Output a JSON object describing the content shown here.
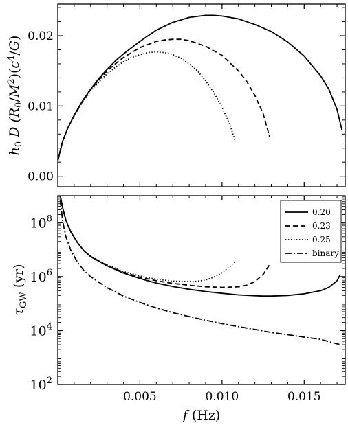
{
  "chart_data": [
    {
      "type": "line",
      "panel": "top",
      "ylabel": "h₀ D (R₀/M²)(c⁴/G)",
      "ylim": [
        -0.0015,
        0.0245
      ],
      "yticks": [
        0.0,
        0.01,
        0.02
      ],
      "ytick_labels": [
        "0.00",
        "0.01",
        "0.02"
      ],
      "xlim": [
        0,
        0.0175
      ],
      "grid": false,
      "series": [
        {
          "name": "0.20",
          "style": "solid",
          "x": [
            1e-05,
            0.0003,
            0.0006,
            0.001,
            0.0015,
            0.002,
            0.0025,
            0.003,
            0.0035,
            0.004,
            0.005,
            0.006,
            0.007,
            0.008,
            0.009,
            0.0095,
            0.01,
            0.011,
            0.012,
            0.013,
            0.014,
            0.015,
            0.016,
            0.0165,
            0.017,
            0.0173
          ],
          "y": [
            0.0023,
            0.005,
            0.0068,
            0.0087,
            0.0107,
            0.0124,
            0.0139,
            0.0152,
            0.0164,
            0.0174,
            0.0192,
            0.0208,
            0.0219,
            0.0226,
            0.0229,
            0.0229,
            0.0228,
            0.0224,
            0.0216,
            0.0206,
            0.0191,
            0.0171,
            0.0143,
            0.0124,
            0.0095,
            0.0066
          ]
        },
        {
          "name": "0.23",
          "style": "dashed",
          "x": [
            1e-05,
            0.0003,
            0.0006,
            0.001,
            0.0015,
            0.002,
            0.0025,
            0.003,
            0.0035,
            0.004,
            0.005,
            0.006,
            0.0065,
            0.007,
            0.0075,
            0.008,
            0.009,
            0.01,
            0.011,
            0.0115,
            0.012,
            0.0125,
            0.0129
          ],
          "y": [
            0.0023,
            0.005,
            0.0068,
            0.0087,
            0.0106,
            0.0123,
            0.0137,
            0.015,
            0.016,
            0.0169,
            0.0183,
            0.0192,
            0.0194,
            0.0195,
            0.0195,
            0.0193,
            0.0185,
            0.0172,
            0.015,
            0.0135,
            0.0115,
            0.0089,
            0.0056
          ]
        },
        {
          "name": "0.25",
          "style": "dotted",
          "x": [
            1e-05,
            0.0003,
            0.0006,
            0.001,
            0.0015,
            0.002,
            0.0025,
            0.003,
            0.0035,
            0.004,
            0.0045,
            0.005,
            0.0055,
            0.006,
            0.0065,
            0.007,
            0.0075,
            0.008,
            0.0085,
            0.009,
            0.0095,
            0.01,
            0.0105,
            0.0108
          ],
          "y": [
            0.0023,
            0.005,
            0.0068,
            0.0086,
            0.0105,
            0.0121,
            0.0134,
            0.0146,
            0.0155,
            0.0163,
            0.0169,
            0.0173,
            0.0176,
            0.0177,
            0.0176,
            0.0173,
            0.0168,
            0.016,
            0.015,
            0.0136,
            0.0119,
            0.0098,
            0.0072,
            0.005
          ]
        }
      ]
    },
    {
      "type": "line",
      "panel": "bottom",
      "ylabel": "τ_GW (yr)",
      "xlabel": "f (Hz)",
      "yscale": "log",
      "ylim": [
        100,
        1000000000
      ],
      "yticks": [
        100,
        10000,
        1000000,
        100000000
      ],
      "ytick_labels": [
        [
          "10",
          "2"
        ],
        [
          "10",
          "4"
        ],
        [
          "10",
          "6"
        ],
        [
          "10",
          "8"
        ]
      ],
      "xlim": [
        0,
        0.0175
      ],
      "xticks": [
        0.005,
        0.01,
        0.015
      ],
      "xtick_labels": [
        "0.005",
        "0.010",
        "0.015"
      ],
      "legend": "top-right",
      "grid": false,
      "series": [
        {
          "name": "0.20",
          "style": "solid",
          "x": [
            0.00015,
            0.0003,
            0.0005,
            0.0008,
            0.0012,
            0.0016,
            0.002,
            0.003,
            0.004,
            0.005,
            0.006,
            0.007,
            0.008,
            0.009,
            0.01,
            0.011,
            0.012,
            0.0125,
            0.013,
            0.014,
            0.015,
            0.016,
            0.0165,
            0.017,
            0.0172
          ],
          "y": [
            1000000000,
            350000000,
            120000000,
            45000000,
            18000000,
            9000000,
            5500000,
            2500000,
            1350000,
            850000,
            580000,
            430000,
            340000,
            280000,
            240000,
            210000,
            195000,
            190000,
            190000,
            200000,
            230000,
            300000,
            400000,
            700000,
            1200000
          ]
        },
        {
          "name": "0.23",
          "style": "dashed",
          "x": [
            0.00015,
            0.0003,
            0.0005,
            0.0008,
            0.0012,
            0.0016,
            0.002,
            0.003,
            0.004,
            0.005,
            0.006,
            0.007,
            0.008,
            0.009,
            0.01,
            0.011,
            0.0115,
            0.012,
            0.0125,
            0.0129
          ],
          "y": [
            1000000000,
            350000000,
            120000000,
            45000000,
            18000000,
            9000000,
            5600000,
            2600000,
            1450000,
            950000,
            700000,
            560000,
            480000,
            420000,
            400000,
            420000,
            480000,
            650000,
            1200000,
            2800000
          ]
        },
        {
          "name": "0.25",
          "style": "dotted",
          "x": [
            0.00015,
            0.0003,
            0.0005,
            0.0008,
            0.0012,
            0.0016,
            0.002,
            0.003,
            0.004,
            0.005,
            0.006,
            0.007,
            0.008,
            0.0085,
            0.009,
            0.0095,
            0.01,
            0.0105,
            0.0108
          ],
          "y": [
            1000000000,
            350000000,
            120000000,
            45000000,
            18000000,
            9100000,
            5700000,
            2700000,
            1550000,
            1050000,
            800000,
            680000,
            650000,
            670000,
            750000,
            950000,
            1400000,
            2400000,
            3800000
          ]
        },
        {
          "name": "binary",
          "style": "dashdot",
          "x": [
            0.00015,
            0.0003,
            0.0005,
            0.0008,
            0.0012,
            0.0016,
            0.002,
            0.003,
            0.004,
            0.005,
            0.006,
            0.007,
            0.008,
            0.009,
            0.01,
            0.011,
            0.012,
            0.013,
            0.014,
            0.015,
            0.016,
            0.0172
          ],
          "y": [
            700000000,
            110000000,
            30000000,
            9200000,
            3400000,
            1650000,
            990000,
            390000,
            190000,
            110000,
            69000,
            46000,
            33000,
            24000,
            18000,
            14000,
            11000,
            8500,
            7000,
            5700,
            4700,
            3000
          ]
        }
      ]
    }
  ]
}
